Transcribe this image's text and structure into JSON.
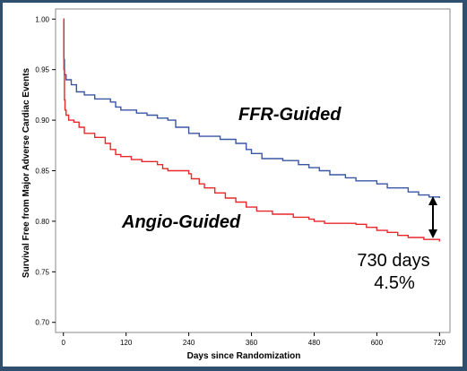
{
  "chart_data": {
    "type": "line",
    "xlabel": "Days since Randomization",
    "ylabel": "Survival Free from Major Adverse Cardiac Events",
    "xlim": [
      -15,
      740
    ],
    "ylim": [
      0.69,
      1.01
    ],
    "x_ticks": [
      0,
      120,
      240,
      360,
      480,
      600,
      720
    ],
    "y_ticks": [
      0.7,
      0.75,
      0.8,
      0.85,
      0.9,
      0.95,
      1.0
    ],
    "y_tick_labels": [
      "0.70",
      "0.75",
      "0.80",
      "0.85",
      "0.90",
      "0.95",
      "1.00"
    ],
    "step": true,
    "series": [
      {
        "name": "FFR-Guided",
        "color": "#3a55a4",
        "points": [
          [
            0,
            1.0
          ],
          [
            1,
            0.96
          ],
          [
            2,
            0.945
          ],
          [
            5,
            0.94
          ],
          [
            15,
            0.935
          ],
          [
            25,
            0.928
          ],
          [
            40,
            0.925
          ],
          [
            60,
            0.921
          ],
          [
            90,
            0.918
          ],
          [
            100,
            0.913
          ],
          [
            110,
            0.91
          ],
          [
            140,
            0.907
          ],
          [
            160,
            0.905
          ],
          [
            180,
            0.902
          ],
          [
            200,
            0.9
          ],
          [
            215,
            0.893
          ],
          [
            240,
            0.887
          ],
          [
            260,
            0.884
          ],
          [
            300,
            0.881
          ],
          [
            330,
            0.877
          ],
          [
            350,
            0.871
          ],
          [
            360,
            0.867
          ],
          [
            380,
            0.862
          ],
          [
            420,
            0.86
          ],
          [
            450,
            0.856
          ],
          [
            470,
            0.853
          ],
          [
            490,
            0.85
          ],
          [
            510,
            0.846
          ],
          [
            540,
            0.843
          ],
          [
            560,
            0.84
          ],
          [
            600,
            0.837
          ],
          [
            620,
            0.833
          ],
          [
            660,
            0.829
          ],
          [
            680,
            0.826
          ],
          [
            700,
            0.824
          ],
          [
            720,
            0.823
          ]
        ]
      },
      {
        "name": "Angio-Guided",
        "color": "#e8282b",
        "points": [
          [
            0,
            1.0
          ],
          [
            1,
            0.95
          ],
          [
            2,
            0.92
          ],
          [
            3,
            0.91
          ],
          [
            5,
            0.905
          ],
          [
            10,
            0.9
          ],
          [
            20,
            0.898
          ],
          [
            30,
            0.893
          ],
          [
            40,
            0.887
          ],
          [
            60,
            0.883
          ],
          [
            80,
            0.877
          ],
          [
            90,
            0.871
          ],
          [
            100,
            0.866
          ],
          [
            110,
            0.864
          ],
          [
            130,
            0.861
          ],
          [
            150,
            0.859
          ],
          [
            180,
            0.856
          ],
          [
            190,
            0.852
          ],
          [
            200,
            0.85
          ],
          [
            240,
            0.847
          ],
          [
            245,
            0.842
          ],
          [
            260,
            0.837
          ],
          [
            270,
            0.833
          ],
          [
            290,
            0.828
          ],
          [
            310,
            0.823
          ],
          [
            330,
            0.819
          ],
          [
            350,
            0.814
          ],
          [
            370,
            0.81
          ],
          [
            400,
            0.807
          ],
          [
            440,
            0.804
          ],
          [
            470,
            0.802
          ],
          [
            480,
            0.8
          ],
          [
            500,
            0.798
          ],
          [
            540,
            0.798
          ],
          [
            560,
            0.797
          ],
          [
            580,
            0.794
          ],
          [
            600,
            0.791
          ],
          [
            620,
            0.789
          ],
          [
            640,
            0.786
          ],
          [
            660,
            0.784
          ],
          [
            690,
            0.782
          ],
          [
            720,
            0.78
          ]
        ]
      }
    ],
    "annotations": {
      "line1": "730 days",
      "line2": "4.5%"
    }
  }
}
